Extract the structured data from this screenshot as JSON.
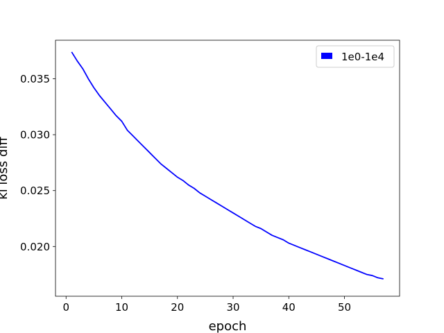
{
  "chart_data": {
    "type": "line",
    "title": "",
    "xlabel": "epoch",
    "ylabel": "kl loss diff",
    "xlim": [
      -1.9,
      59.9
    ],
    "ylim": [
      0.01555,
      0.03845
    ],
    "x_ticks": [
      0,
      10,
      20,
      30,
      40,
      50
    ],
    "y_ticks": [
      0.02,
      0.025,
      0.03,
      0.035
    ],
    "x_tick_labels": [
      "0",
      "10",
      "20",
      "30",
      "40",
      "50"
    ],
    "y_tick_labels": [
      "0.020",
      "0.025",
      "0.030",
      "0.035"
    ],
    "grid": false,
    "legend_position": "upper right",
    "series": [
      {
        "name": "1e0-1e4",
        "color": "#0000ff",
        "x": [
          1,
          2,
          3,
          4,
          5,
          6,
          7,
          8,
          9,
          10,
          11,
          12,
          13,
          14,
          15,
          16,
          17,
          18,
          19,
          20,
          21,
          22,
          23,
          24,
          25,
          26,
          27,
          28,
          29,
          30,
          31,
          32,
          33,
          34,
          35,
          36,
          37,
          38,
          39,
          40,
          41,
          42,
          43,
          44,
          45,
          46,
          47,
          48,
          49,
          50,
          51,
          52,
          53,
          54,
          55,
          56,
          57
        ],
        "y": [
          0.0374,
          0.0366,
          0.0359,
          0.035,
          0.0342,
          0.0335,
          0.0329,
          0.0323,
          0.0317,
          0.0312,
          0.0304,
          0.0299,
          0.0294,
          0.0289,
          0.0284,
          0.0279,
          0.0274,
          0.027,
          0.0266,
          0.0262,
          0.0259,
          0.0255,
          0.0252,
          0.0248,
          0.0245,
          0.0242,
          0.0239,
          0.0236,
          0.0233,
          0.023,
          0.0227,
          0.0224,
          0.0221,
          0.0218,
          0.0216,
          0.0213,
          0.021,
          0.0208,
          0.0206,
          0.0203,
          0.0201,
          0.0199,
          0.0197,
          0.0195,
          0.0193,
          0.0191,
          0.0189,
          0.0187,
          0.0185,
          0.0183,
          0.0181,
          0.0179,
          0.0177,
          0.0175,
          0.0174,
          0.0172,
          0.0171
        ]
      }
    ]
  }
}
